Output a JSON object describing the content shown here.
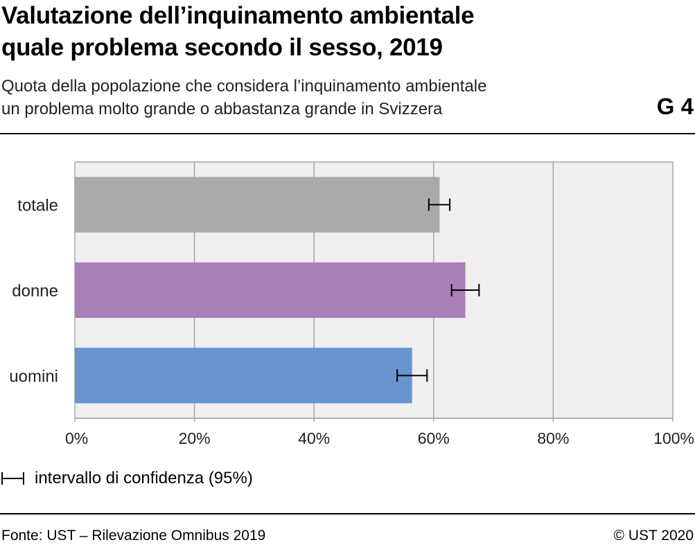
{
  "header": {
    "title_line1": "Valutazione dell’inquinamento ambientale",
    "title_line2": "quale problema secondo il sesso, 2019",
    "subtitle_line1": "Quota della popolazione che considera l’inquinamento ambientale",
    "subtitle_line2": "un problema molto grande o abbastanza grande in Svizzera",
    "graphic_code": "G 4"
  },
  "chart_data": {
    "type": "bar",
    "orientation": "horizontal",
    "categories": [
      "totale",
      "donne",
      "uomini"
    ],
    "values": [
      61,
      65.3,
      56.4
    ],
    "error_low": [
      59.2,
      63.0,
      53.9
    ],
    "error_high": [
      62.7,
      67.6,
      58.9
    ],
    "colors": [
      "#aaaaaa",
      "#aa80b8",
      "#6894cf"
    ],
    "xlim": [
      0,
      100
    ],
    "xticks": [
      "0%",
      "20%",
      "40%",
      "60%",
      "80%",
      "100%"
    ],
    "grid": true,
    "plot_background": "#efefef"
  },
  "legend": {
    "label": "intervallo di confidenza (95%)"
  },
  "footer": {
    "source": "Fonte: UST – Rilevazione Omnibus 2019",
    "copyright": "© UST 2020"
  }
}
